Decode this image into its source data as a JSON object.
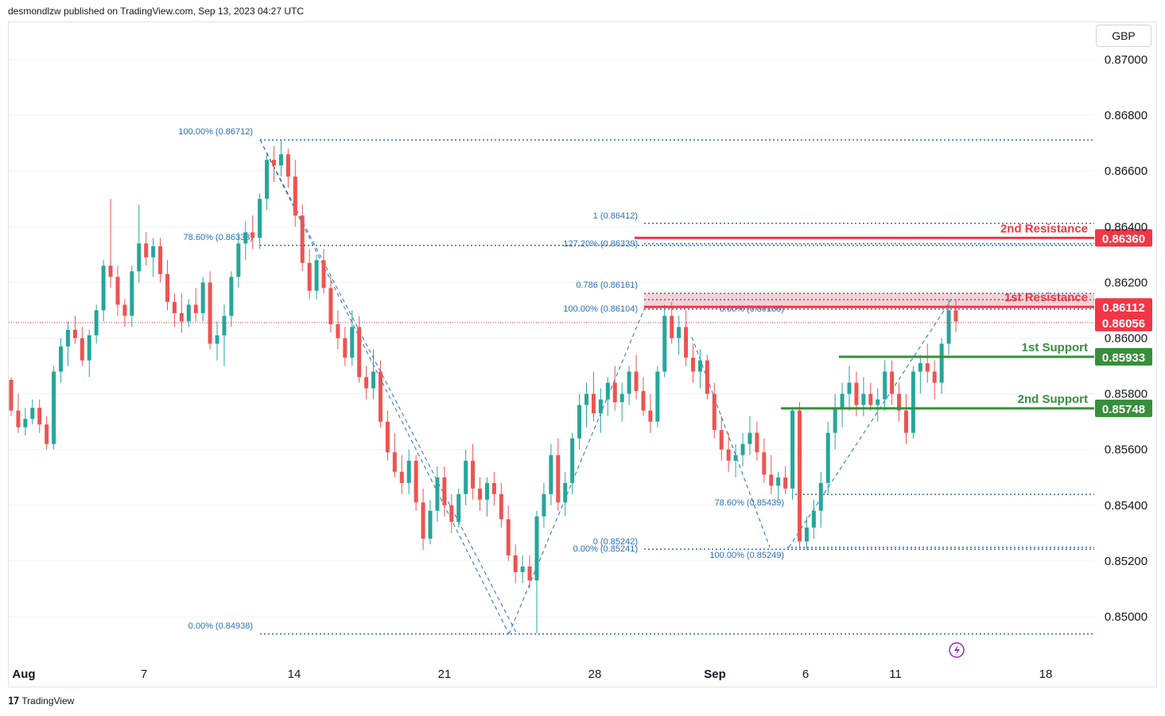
{
  "header": {
    "publisher": "desmondlzw published on TradingView.com, Sep 13, 2023 04:27 UTC"
  },
  "currency": "GBP",
  "footer": {
    "brand": "TradingView"
  },
  "colors": {
    "up": "#26a69a",
    "down": "#ef5350",
    "fib": "#2a6fb5",
    "resistance": "#f23645",
    "support": "#388e3c",
    "grid": "#f0f3fa",
    "current": "#f23645"
  },
  "chart_data": {
    "type": "candlestick",
    "ylim": [
      0.8492,
      0.8718
    ],
    "y_ticks": [
      "0.87000",
      "0.86800",
      "0.86600",
      "0.86400",
      "0.86200",
      "0.86000",
      "0.85800",
      "0.85600",
      "0.85400",
      "0.85200",
      "0.85000"
    ],
    "x_ticks": [
      "Aug",
      "7",
      "14",
      "21",
      "28",
      "Sep",
      "6",
      "11",
      "18"
    ],
    "current_price": "0.86056",
    "levels": [
      {
        "name": "2nd Resistance",
        "price": "0.86360",
        "value": 0.8636,
        "kind": "resistance"
      },
      {
        "name": "1st Resistance",
        "price": "0.86112",
        "value": 0.86112,
        "kind": "resistance"
      },
      {
        "name": "1st Support",
        "price": "0.85933",
        "value": 0.85933,
        "kind": "support"
      },
      {
        "name": "2nd Support",
        "price": "0.85748",
        "value": 0.85748,
        "kind": "support"
      }
    ],
    "fib_labels": [
      "100.00% (0.86712)",
      "78.60% (0.86333)",
      "0.00% (0.84938)",
      "1 (0.86412)",
      "127.20% (0.86339)",
      "0.786 (0.86161)",
      "100.00% (0.86104)",
      "0.00% (0.86138)",
      "78.60% (0.85439)",
      "0 (0.85242)",
      "0.00% (0.85241)",
      "100.00% (0.85249)"
    ],
    "resistance_zone": [
      0.86112,
      0.86161
    ],
    "series_ohlc": [
      [
        0.8585,
        0.8586,
        0.8572,
        0.8574
      ],
      [
        0.8574,
        0.858,
        0.8566,
        0.8568
      ],
      [
        0.8568,
        0.8575,
        0.8565,
        0.8571
      ],
      [
        0.8571,
        0.8578,
        0.8569,
        0.8575
      ],
      [
        0.8575,
        0.8578,
        0.8566,
        0.8569
      ],
      [
        0.8569,
        0.8572,
        0.856,
        0.8562
      ],
      [
        0.8562,
        0.859,
        0.856,
        0.8588
      ],
      [
        0.8588,
        0.86,
        0.8584,
        0.8597
      ],
      [
        0.8597,
        0.8606,
        0.859,
        0.8603
      ],
      [
        0.8603,
        0.8608,
        0.8598,
        0.86
      ],
      [
        0.86,
        0.8604,
        0.859,
        0.8592
      ],
      [
        0.8592,
        0.8603,
        0.8586,
        0.8601
      ],
      [
        0.8601,
        0.8612,
        0.8598,
        0.861
      ],
      [
        0.861,
        0.8628,
        0.8606,
        0.8626
      ],
      [
        0.8626,
        0.865,
        0.8618,
        0.8622
      ],
      [
        0.8622,
        0.8626,
        0.8608,
        0.8612
      ],
      [
        0.8612,
        0.8614,
        0.8604,
        0.8608
      ],
      [
        0.8608,
        0.8626,
        0.8604,
        0.8624
      ],
      [
        0.8624,
        0.8648,
        0.862,
        0.8634
      ],
      [
        0.8634,
        0.8638,
        0.8626,
        0.8629
      ],
      [
        0.8629,
        0.8636,
        0.8622,
        0.8633
      ],
      [
        0.8633,
        0.8636,
        0.862,
        0.8623
      ],
      [
        0.8623,
        0.8628,
        0.861,
        0.8613
      ],
      [
        0.8613,
        0.8616,
        0.8604,
        0.8609
      ],
      [
        0.8609,
        0.8616,
        0.8602,
        0.8606
      ],
      [
        0.8606,
        0.8614,
        0.8604,
        0.8612
      ],
      [
        0.8612,
        0.8618,
        0.8606,
        0.8609
      ],
      [
        0.8609,
        0.8622,
        0.8606,
        0.862
      ],
      [
        0.862,
        0.8624,
        0.8596,
        0.8598
      ],
      [
        0.8598,
        0.8606,
        0.8592,
        0.8601
      ],
      [
        0.8601,
        0.8612,
        0.859,
        0.8608
      ],
      [
        0.8608,
        0.8624,
        0.8604,
        0.8622
      ],
      [
        0.8622,
        0.8638,
        0.8618,
        0.8634
      ],
      [
        0.8634,
        0.8642,
        0.8628,
        0.8638
      ],
      [
        0.8638,
        0.8644,
        0.8632,
        0.8636
      ],
      [
        0.8636,
        0.8652,
        0.8632,
        0.865
      ],
      [
        0.865,
        0.8666,
        0.8646,
        0.8664
      ],
      [
        0.8664,
        0.8669,
        0.8656,
        0.8662
      ],
      [
        0.8662,
        0.8671,
        0.8658,
        0.8666
      ],
      [
        0.8666,
        0.8668,
        0.8654,
        0.8658
      ],
      [
        0.8658,
        0.8664,
        0.864,
        0.8644
      ],
      [
        0.8644,
        0.8648,
        0.8624,
        0.8627
      ],
      [
        0.8627,
        0.8632,
        0.8614,
        0.8617
      ],
      [
        0.8617,
        0.863,
        0.8614,
        0.8628
      ],
      [
        0.8628,
        0.8632,
        0.8616,
        0.8618
      ],
      [
        0.8618,
        0.8622,
        0.8602,
        0.8605
      ],
      [
        0.8605,
        0.861,
        0.8596,
        0.86
      ],
      [
        0.86,
        0.8604,
        0.859,
        0.8593
      ],
      [
        0.8593,
        0.861,
        0.859,
        0.8604
      ],
      [
        0.8604,
        0.8608,
        0.8584,
        0.8586
      ],
      [
        0.8586,
        0.859,
        0.8578,
        0.8582
      ],
      [
        0.8582,
        0.8596,
        0.8578,
        0.8588
      ],
      [
        0.8588,
        0.8592,
        0.8568,
        0.857
      ],
      [
        0.857,
        0.8574,
        0.8556,
        0.8559
      ],
      [
        0.8559,
        0.8566,
        0.855,
        0.8552
      ],
      [
        0.8552,
        0.8558,
        0.8544,
        0.8548
      ],
      [
        0.8548,
        0.856,
        0.8544,
        0.8556
      ],
      [
        0.8556,
        0.8558,
        0.8538,
        0.8541
      ],
      [
        0.8541,
        0.8546,
        0.8524,
        0.8528
      ],
      [
        0.8528,
        0.8542,
        0.8526,
        0.8538
      ],
      [
        0.8538,
        0.8554,
        0.8534,
        0.855
      ],
      [
        0.855,
        0.8554,
        0.8536,
        0.854
      ],
      [
        0.854,
        0.8544,
        0.853,
        0.8534
      ],
      [
        0.8534,
        0.8546,
        0.8532,
        0.8544
      ],
      [
        0.8544,
        0.856,
        0.854,
        0.8556
      ],
      [
        0.8556,
        0.8562,
        0.8542,
        0.8546
      ],
      [
        0.8546,
        0.855,
        0.8538,
        0.8542
      ],
      [
        0.8542,
        0.855,
        0.8536,
        0.8548
      ],
      [
        0.8548,
        0.8552,
        0.854,
        0.8544
      ],
      [
        0.8544,
        0.8548,
        0.8532,
        0.8535
      ],
      [
        0.8535,
        0.854,
        0.852,
        0.8522
      ],
      [
        0.8522,
        0.8526,
        0.8512,
        0.8516
      ],
      [
        0.8516,
        0.8522,
        0.8512,
        0.8518
      ],
      [
        0.8518,
        0.8522,
        0.851,
        0.8513
      ],
      [
        0.8513,
        0.8538,
        0.8494,
        0.8536
      ],
      [
        0.8536,
        0.8548,
        0.8532,
        0.8544
      ],
      [
        0.8544,
        0.8562,
        0.854,
        0.8558
      ],
      [
        0.8558,
        0.8564,
        0.8538,
        0.8541
      ],
      [
        0.8541,
        0.8552,
        0.8536,
        0.8548
      ],
      [
        0.8548,
        0.8566,
        0.8544,
        0.8564
      ],
      [
        0.8564,
        0.858,
        0.856,
        0.8576
      ],
      [
        0.8576,
        0.8584,
        0.8568,
        0.858
      ],
      [
        0.858,
        0.8588,
        0.857,
        0.8573
      ],
      [
        0.8573,
        0.8582,
        0.8566,
        0.8578
      ],
      [
        0.8578,
        0.8586,
        0.8572,
        0.8584
      ],
      [
        0.8584,
        0.859,
        0.8574,
        0.8577
      ],
      [
        0.8577,
        0.8584,
        0.857,
        0.858
      ],
      [
        0.858,
        0.859,
        0.8576,
        0.8588
      ],
      [
        0.8588,
        0.8594,
        0.8578,
        0.8581
      ],
      [
        0.8581,
        0.8586,
        0.8572,
        0.8574
      ],
      [
        0.8574,
        0.858,
        0.8566,
        0.857
      ],
      [
        0.857,
        0.859,
        0.8568,
        0.8588
      ],
      [
        0.8588,
        0.8612,
        0.8586,
        0.8608
      ],
      [
        0.8608,
        0.8613,
        0.8598,
        0.86
      ],
      [
        0.86,
        0.8608,
        0.8594,
        0.8604
      ],
      [
        0.8604,
        0.861,
        0.859,
        0.8593
      ],
      [
        0.8593,
        0.8598,
        0.8584,
        0.8588
      ],
      [
        0.8588,
        0.8596,
        0.8582,
        0.8592
      ],
      [
        0.8592,
        0.8594,
        0.8578,
        0.858
      ],
      [
        0.858,
        0.8584,
        0.8564,
        0.8567
      ],
      [
        0.8567,
        0.8572,
        0.8556,
        0.856
      ],
      [
        0.856,
        0.8566,
        0.8552,
        0.8556
      ],
      [
        0.8556,
        0.8562,
        0.855,
        0.8558
      ],
      [
        0.8558,
        0.8566,
        0.8554,
        0.8562
      ],
      [
        0.8562,
        0.8572,
        0.8558,
        0.8566
      ],
      [
        0.8566,
        0.857,
        0.8556,
        0.8559
      ],
      [
        0.8559,
        0.8564,
        0.8548,
        0.8551
      ],
      [
        0.8551,
        0.8558,
        0.8544,
        0.8547
      ],
      [
        0.8547,
        0.8552,
        0.8542,
        0.855
      ],
      [
        0.855,
        0.8554,
        0.8544,
        0.8546
      ],
      [
        0.8546,
        0.8575,
        0.8542,
        0.8574
      ],
      [
        0.8574,
        0.8577,
        0.8524,
        0.8527
      ],
      [
        0.8527,
        0.8536,
        0.8524,
        0.8532
      ],
      [
        0.8532,
        0.8542,
        0.8528,
        0.8538
      ],
      [
        0.8538,
        0.8552,
        0.8532,
        0.8548
      ],
      [
        0.8548,
        0.857,
        0.8544,
        0.8566
      ],
      [
        0.8566,
        0.858,
        0.856,
        0.8575
      ],
      [
        0.8575,
        0.8584,
        0.8568,
        0.858
      ],
      [
        0.858,
        0.859,
        0.8574,
        0.8584
      ],
      [
        0.8584,
        0.8588,
        0.8572,
        0.8576
      ],
      [
        0.8576,
        0.8586,
        0.8572,
        0.858
      ],
      [
        0.858,
        0.8584,
        0.8574,
        0.8576
      ],
      [
        0.8576,
        0.8582,
        0.857,
        0.8578
      ],
      [
        0.8578,
        0.8592,
        0.8574,
        0.8588
      ],
      [
        0.8588,
        0.8592,
        0.8576,
        0.858
      ],
      [
        0.858,
        0.8584,
        0.857,
        0.8574
      ],
      [
        0.8574,
        0.858,
        0.8562,
        0.8566
      ],
      [
        0.8566,
        0.859,
        0.8564,
        0.8588
      ],
      [
        0.8588,
        0.8594,
        0.858,
        0.8591
      ],
      [
        0.8591,
        0.8598,
        0.8584,
        0.8588
      ],
      [
        0.8588,
        0.8592,
        0.8578,
        0.8584
      ],
      [
        0.8584,
        0.86,
        0.858,
        0.8598
      ],
      [
        0.8598,
        0.8614,
        0.8594,
        0.861
      ],
      [
        0.861,
        0.8614,
        0.8602,
        0.8606
      ]
    ]
  }
}
